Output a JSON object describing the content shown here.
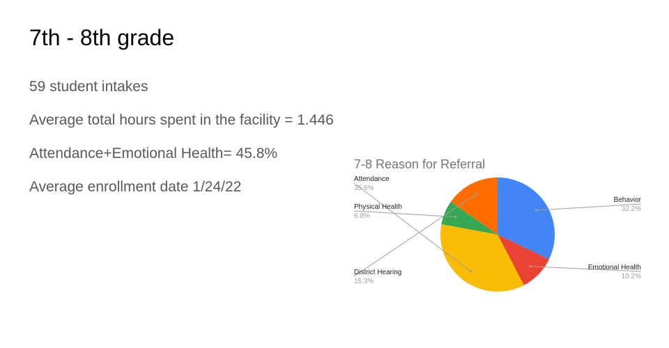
{
  "slide": {
    "title": "7th - 8th grade",
    "stats": [
      "59 student intakes",
      "Average total hours spent in the facility = 1.446",
      "Attendance+Emotional Health= 45.8%",
      "Average enrollment date 1/24/22"
    ]
  },
  "chart_data": {
    "type": "pie",
    "title": "7-8 Reason for Referral",
    "slices": [
      {
        "label": "Behavior",
        "value": 32.2,
        "percent_label": "32.2%",
        "color": "#4285F4",
        "label_side": "right"
      },
      {
        "label": "Emotional Health",
        "value": 10.2,
        "percent_label": "10.2%",
        "color": "#EA4335",
        "label_side": "right"
      },
      {
        "label": "Attendance",
        "value": 35.6,
        "percent_label": "35.6%",
        "color": "#FBBC04",
        "label_side": "left"
      },
      {
        "label": "Physical Health",
        "value": 6.8,
        "percent_label": "6.8%",
        "color": "#34A853",
        "label_side": "left"
      },
      {
        "label": "District Hearing",
        "value": 15.3,
        "percent_label": "15.3%",
        "color": "#FF6D01",
        "label_side": "left"
      }
    ],
    "legend": "none"
  }
}
